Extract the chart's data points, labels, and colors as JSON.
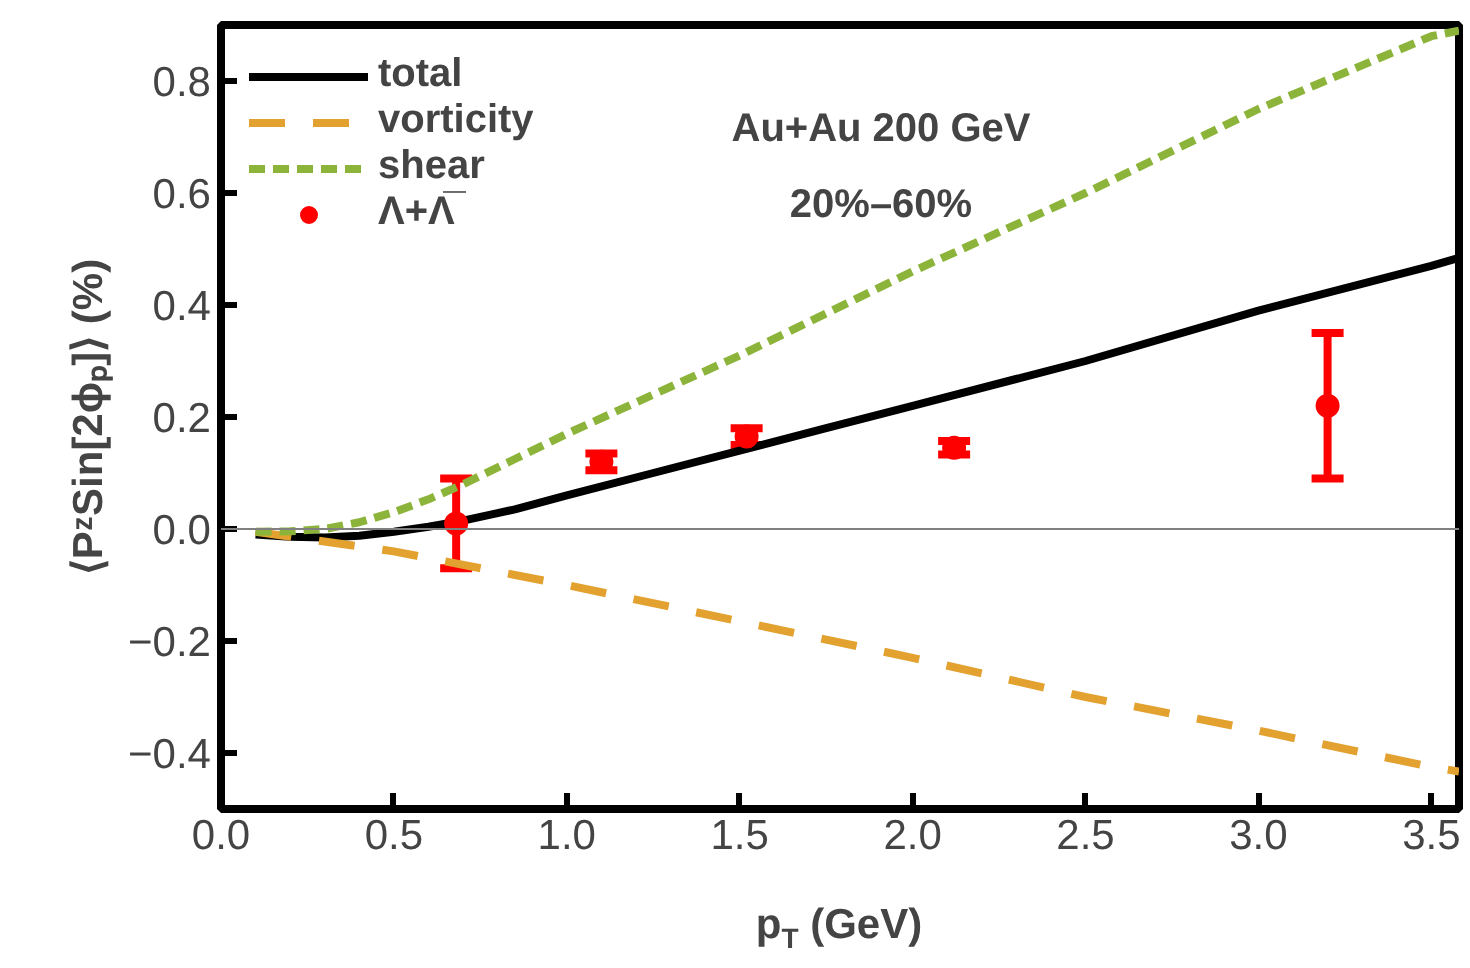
{
  "chart_data": {
    "type": "line",
    "xlabel": "p$_{T}$ (GeV)",
    "ylabel": "⟨PᶻSin[2ϕₚ]⟩ (%)",
    "xlim": [
      0,
      3.58
    ],
    "ylim": [
      -0.5,
      0.9
    ],
    "xticks": [
      {
        "value": 0,
        "label": "0.0"
      },
      0.5,
      {
        "value": 1,
        "label": "1.0"
      },
      1.5,
      {
        "value": 2,
        "label": "2.0"
      },
      2.5,
      {
        "value": 3,
        "label": "3.0"
      },
      3.5
    ],
    "yticks": [
      -0.4,
      -0.2,
      {
        "value": 0,
        "label": "0.0"
      },
      0.2,
      0.4,
      0.6,
      0.8
    ],
    "grid": false,
    "legend": "top left",
    "marker": "none",
    "series": [
      {
        "name": "total",
        "color": "#000000",
        "line_style": "solid",
        "x": [
          0.1,
          0.2,
          0.3,
          0.4,
          0.5,
          0.6,
          0.7,
          0.85,
          1.0,
          1.25,
          1.5,
          1.75,
          2.0,
          2.5,
          3.0,
          3.5,
          3.58
        ],
        "values": [
          -0.01,
          -0.014,
          -0.015,
          -0.012,
          -0.005,
          0.004,
          0.015,
          0.035,
          0.06,
          0.1,
          0.14,
          0.18,
          0.22,
          0.3,
          0.39,
          0.47,
          0.484
        ]
      },
      {
        "name": "vorticity",
        "color": "#e3a12f",
        "line_style": "dashed",
        "x": [
          0.1,
          0.5,
          1.0,
          1.5,
          2.0,
          2.5,
          3.0,
          3.5,
          3.58
        ],
        "values": [
          -0.005,
          -0.04,
          -0.1,
          -0.165,
          -0.23,
          -0.3,
          -0.36,
          -0.425,
          -0.433
        ]
      },
      {
        "name": "shear",
        "color": "#8db43a",
        "line_style": "dotted",
        "x": [
          0.1,
          0.2,
          0.3,
          0.4,
          0.5,
          0.6,
          0.7,
          0.85,
          1.0,
          1.25,
          1.5,
          1.75,
          2.0,
          2.5,
          3.0,
          3.5,
          3.58
        ],
        "values": [
          -0.005,
          -0.004,
          0.0,
          0.012,
          0.03,
          0.053,
          0.08,
          0.125,
          0.17,
          0.24,
          0.31,
          0.385,
          0.46,
          0.6,
          0.75,
          0.88,
          0.89
        ]
      },
      {
        "name": "Λ+Λ̅",
        "type": "scatter",
        "marker": "circle",
        "color": "#ff0000",
        "x": [
          0.68,
          1.1,
          1.52,
          2.12,
          3.2
        ],
        "values": [
          0.01,
          0.12,
          0.165,
          0.145,
          0.22
        ],
        "errors": [
          [
            -0.07,
            0.09
          ],
          [
            0.105,
            0.135
          ],
          [
            0.15,
            0.18
          ],
          [
            0.133,
            0.157
          ],
          [
            0.09,
            0.35
          ]
        ]
      }
    ],
    "ref_lines": [
      {
        "axis": "y",
        "value": 0,
        "color": "#808080"
      }
    ],
    "annotations": [
      "Au+Au 200 GeV",
      "20%–60%"
    ]
  }
}
